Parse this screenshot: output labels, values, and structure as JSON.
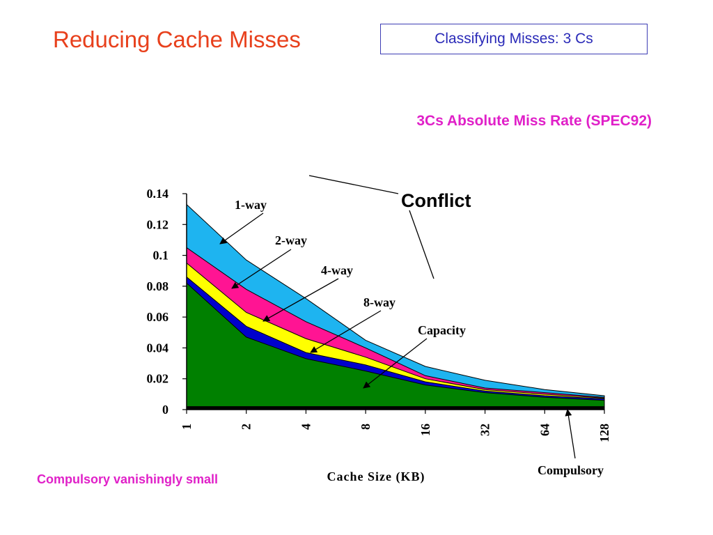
{
  "slide": {
    "title": "Reducing Cache Misses",
    "topic": "Classifying Misses:  3 Cs",
    "note": "Compulsory vanishingly small"
  },
  "colors": {
    "title": "#e8401c",
    "topic": "#2a2ab8",
    "accent": "#e020c8"
  },
  "chart_data": {
    "type": "area",
    "title": "3Cs Absolute Miss Rate (SPEC92)",
    "xlabel": "Cache Size (KB)",
    "ylabel": "",
    "categories": [
      "1",
      "2",
      "4",
      "8",
      "16",
      "32",
      "64",
      "128"
    ],
    "ylim": [
      0,
      0.14
    ],
    "yticks": [
      "0",
      "0.02",
      "0.04",
      "0.06",
      "0.08",
      "0.1",
      "0.12",
      "0.14"
    ],
    "series": [
      {
        "key": "compulsory",
        "color": "#000000",
        "values": [
          0.002,
          0.002,
          0.002,
          0.002,
          0.002,
          0.002,
          0.002,
          0.002
        ]
      },
      {
        "key": "capacity",
        "color": "#008000",
        "values": [
          0.082,
          0.047,
          0.033,
          0.025,
          0.016,
          0.011,
          0.008,
          0.006
        ]
      },
      {
        "key": "8-way",
        "color": "#0000cc",
        "values": [
          0.086,
          0.054,
          0.037,
          0.029,
          0.018,
          0.012,
          0.009,
          0.007
        ]
      },
      {
        "key": "4-way",
        "color": "#ffff00",
        "values": [
          0.095,
          0.063,
          0.046,
          0.034,
          0.02,
          0.013,
          0.01,
          0.0075
        ]
      },
      {
        "key": "2-way",
        "color": "#ff1493",
        "values": [
          0.105,
          0.078,
          0.057,
          0.04,
          0.022,
          0.014,
          0.011,
          0.008
        ]
      },
      {
        "key": "1-way",
        "color": "#1eb4f0",
        "values": [
          0.133,
          0.097,
          0.072,
          0.045,
          0.028,
          0.019,
          0.013,
          0.009
        ]
      }
    ],
    "annotations": {
      "one_way": "1-way",
      "two_way": "2-way",
      "four_way": "4-way",
      "eight_way": "8-way",
      "capacity": "Capacity",
      "conflict": "Conflict",
      "compulsory": "Compulsory"
    }
  }
}
